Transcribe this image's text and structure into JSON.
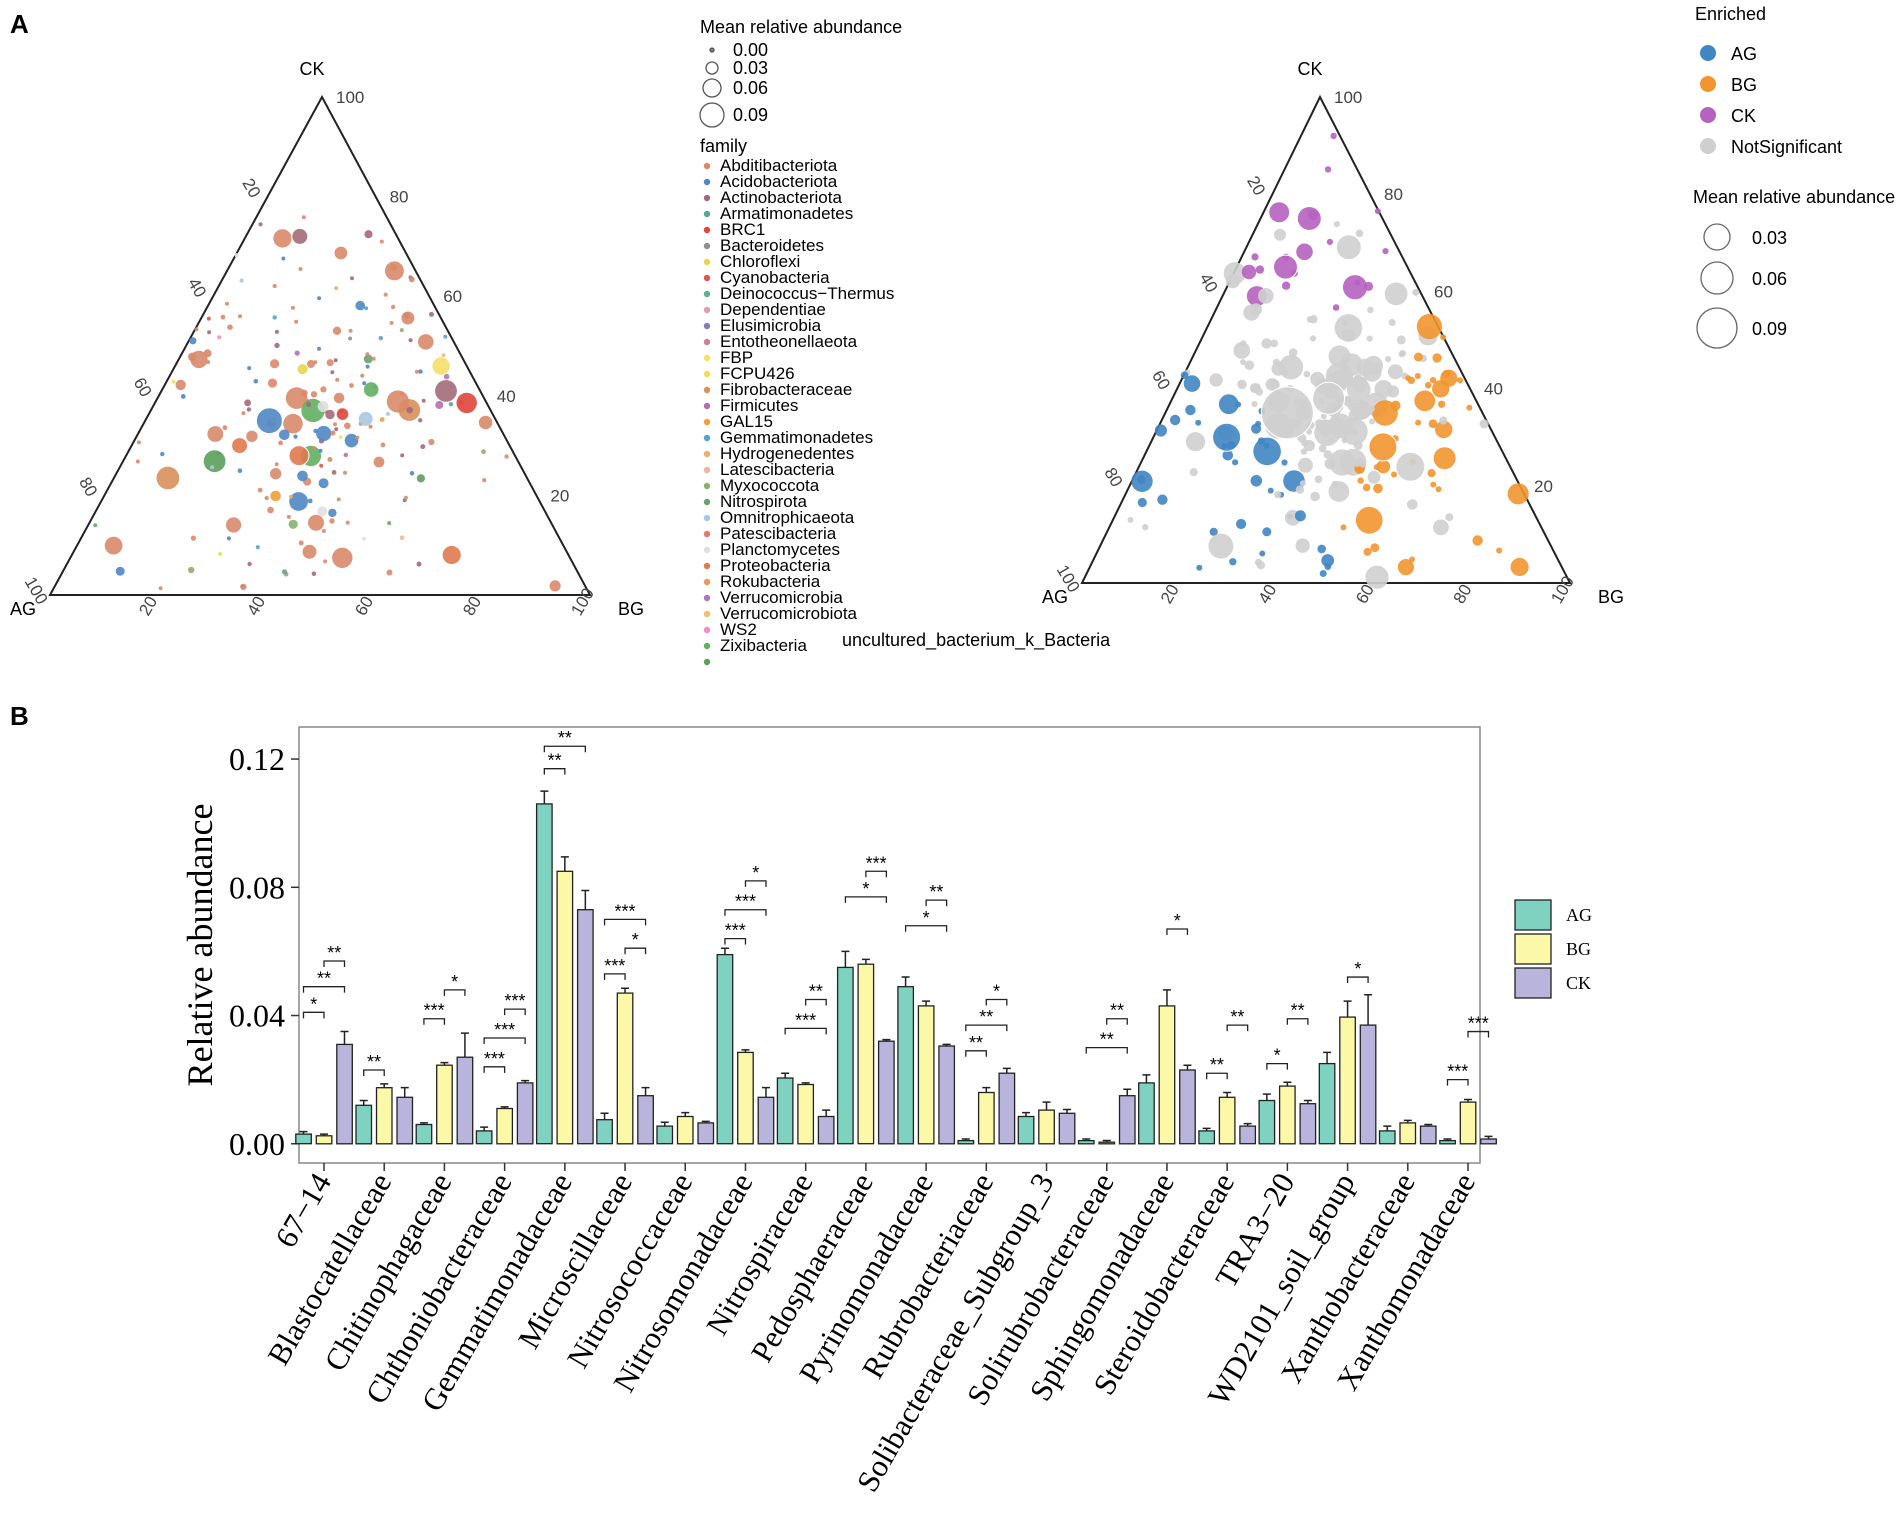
{
  "panel_labels": {
    "a": "A",
    "b": "B"
  },
  "chart_data": [
    {
      "type": "ternary",
      "id": "ternary-family",
      "vertices": {
        "top": "CK",
        "left": "AG",
        "right": "BG"
      },
      "ticks": [
        "20",
        "40",
        "60",
        "80",
        "100"
      ],
      "size_legend": {
        "title": "Mean relative abundance",
        "values": [
          "0.00",
          "0.03",
          "0.06",
          "0.09"
        ]
      },
      "color_legend": {
        "title": "family",
        "entries": [
          {
            "name": "Abditibacteriota",
            "color": "#d9896a"
          },
          {
            "name": "Acidobacteriota",
            "color": "#4f87c4"
          },
          {
            "name": "Actinobacteriota",
            "color": "#a46a7a"
          },
          {
            "name": "Armatimonadetes",
            "color": "#5aa59a"
          },
          {
            "name": "BRC1",
            "color": "#e0463b"
          },
          {
            "name": "Bacteroidetes",
            "color": "#8f8f9a"
          },
          {
            "name": "Chloroflexi",
            "color": "#e8d450"
          },
          {
            "name": "Cyanobacteria",
            "color": "#d85a50"
          },
          {
            "name": "Deinococcus−Thermus",
            "color": "#62b08a"
          },
          {
            "name": "Dependentiae",
            "color": "#d8a0b8"
          },
          {
            "name": "Elusimicrobia",
            "color": "#8a7ab0"
          },
          {
            "name": "Entotheonellaeota",
            "color": "#c8809a"
          },
          {
            "name": "FBP",
            "color": "#f4e06a"
          },
          {
            "name": "FCPU426",
            "color": "#f2dc5a"
          },
          {
            "name": "Fibrobacteraceae",
            "color": "#d8905a"
          },
          {
            "name": "Firmicutes",
            "color": "#b070b0"
          },
          {
            "name": "GAL15",
            "color": "#f0a03a"
          },
          {
            "name": "Gemmatimonadetes",
            "color": "#5aa0d0"
          },
          {
            "name": "Hydrogenedentes",
            "color": "#e8b070"
          },
          {
            "name": "Latescibacteria",
            "color": "#e8b8a0"
          },
          {
            "name": "Myxococcota",
            "color": "#8ab070"
          },
          {
            "name": "Nitrospirota",
            "color": "#6aa070"
          },
          {
            "name": "Omnitrophicaeota",
            "color": "#a8c8e0"
          },
          {
            "name": "Patescibacteria",
            "color": "#e07a6a"
          },
          {
            "name": "Planctomycetes",
            "color": "#e0e0e0"
          },
          {
            "name": "Proteobacteria",
            "color": "#e07a50"
          },
          {
            "name": "Rokubacteria",
            "color": "#e89a60"
          },
          {
            "name": "Verrucomicrobia",
            "color": "#a87ab8"
          },
          {
            "name": "Verrucomicrobiota",
            "color": "#f0c070"
          },
          {
            "name": "WS2",
            "color": "#f090c8"
          },
          {
            "name": "Zixibacteria",
            "color": "#60b060"
          },
          {
            "name": "uncultured_bacterium_k_Bacteria",
            "color": "#5aa05a"
          }
        ]
      }
    },
    {
      "type": "ternary",
      "id": "ternary-enriched",
      "vertices": {
        "top": "CK",
        "left": "AG",
        "right": "BG"
      },
      "ticks": [
        "20",
        "40",
        "60",
        "80",
        "100"
      ],
      "color_legend": {
        "title": "Enriched",
        "entries": [
          {
            "name": "AG",
            "color": "#3f86c2"
          },
          {
            "name": "BG",
            "color": "#f2952f"
          },
          {
            "name": "CK",
            "color": "#b562c0"
          },
          {
            "name": "NotSignificant",
            "color": "#cfcfcf"
          }
        ]
      },
      "size_legend": {
        "title": "Mean relative abundance",
        "values": [
          "0.03",
          "0.06",
          "0.09"
        ]
      }
    },
    {
      "type": "bar",
      "id": "bar-family",
      "ylabel": "Relative abundance",
      "ylim": [
        -0.006,
        0.13
      ],
      "yticks": [
        0.0,
        0.04,
        0.08,
        0.12
      ],
      "ytick_labels": [
        "0.00",
        "0.04",
        "0.08",
        "0.12"
      ],
      "series_names": [
        "AG",
        "BG",
        "CK"
      ],
      "series_colors": [
        "#7fd1c0",
        "#fbf8a8",
        "#b9b4db"
      ],
      "categories": [
        "67−14",
        "Blastocatellaceae",
        "Chitinophagaceae",
        "Chthoniobacteraceae",
        "Gemmatimonadaceae",
        "Microscillaceae",
        "Nitrosococcaceae",
        "Nitrosomonadaceae",
        "Nitrospiraceae",
        "Pedosphaeraceae",
        "Pyrinomonadaceae",
        "Rubrobacteriaceae",
        "Solibacteraceae_Subgroup_3",
        "Solirubrobacteraceae",
        "Sphingomonadaceae",
        "Steroidobacteraceae",
        "TRA3−20",
        "WD2101_soil_group",
        "Xanthobacteraceae",
        "Xanthomonadaceae"
      ],
      "values": [
        [
          0.003,
          0.0025,
          0.031
        ],
        [
          0.012,
          0.0175,
          0.0145
        ],
        [
          0.006,
          0.0245,
          0.027
        ],
        [
          0.004,
          0.011,
          0.019
        ],
        [
          0.106,
          0.085,
          0.073
        ],
        [
          0.0075,
          0.047,
          0.015
        ],
        [
          0.0055,
          0.0085,
          0.0065
        ],
        [
          0.059,
          0.0285,
          0.0145
        ],
        [
          0.0205,
          0.0185,
          0.0085
        ],
        [
          0.055,
          0.056,
          0.032
        ],
        [
          0.049,
          0.043,
          0.0305
        ],
        [
          0.001,
          0.016,
          0.022
        ],
        [
          0.0085,
          0.0105,
          0.0095
        ],
        [
          0.001,
          0.0005,
          0.015
        ],
        [
          0.019,
          0.043,
          0.023
        ],
        [
          0.004,
          0.0145,
          0.0055
        ],
        [
          0.0135,
          0.018,
          0.0125
        ],
        [
          0.025,
          0.0395,
          0.037
        ],
        [
          0.004,
          0.0065,
          0.0055
        ],
        [
          0.001,
          0.013,
          0.0015
        ]
      ],
      "errors": [
        [
          0.0008,
          0.0005,
          0.004
        ],
        [
          0.0015,
          0.0012,
          0.003
        ],
        [
          0.0005,
          0.0008,
          0.0075
        ],
        [
          0.0012,
          0.0005,
          0.0007
        ],
        [
          0.004,
          0.0045,
          0.006
        ],
        [
          0.002,
          0.0015,
          0.0025
        ],
        [
          0.0012,
          0.0012,
          0.0005
        ],
        [
          0.002,
          0.0008,
          0.003
        ],
        [
          0.0015,
          0.0005,
          0.002
        ],
        [
          0.005,
          0.0015,
          0.0005
        ],
        [
          0.003,
          0.0015,
          0.0005
        ],
        [
          0.0005,
          0.0015,
          0.0015
        ],
        [
          0.0012,
          0.0025,
          0.0012
        ],
        [
          0.0005,
          0.0005,
          0.002
        ],
        [
          0.0025,
          0.005,
          0.0015
        ],
        [
          0.0008,
          0.0015,
          0.0008
        ],
        [
          0.002,
          0.0012,
          0.001
        ],
        [
          0.0035,
          0.005,
          0.0095
        ],
        [
          0.0015,
          0.0008,
          0.0005
        ],
        [
          0.0005,
          0.0008,
          0.0008
        ]
      ],
      "significance": [
        {
          "category": 0,
          "pairs": [
            [
              0,
              1,
              0.041,
              "*"
            ],
            [
              0,
              2,
              0.049,
              "**"
            ],
            [
              1,
              2,
              0.057,
              "**"
            ]
          ]
        },
        {
          "category": 1,
          "pairs": [
            [
              0,
              1,
              0.023,
              "**"
            ]
          ]
        },
        {
          "category": 2,
          "pairs": [
            [
              0,
              1,
              0.039,
              "***"
            ],
            [
              1,
              2,
              0.048,
              "*"
            ]
          ]
        },
        {
          "category": 3,
          "pairs": [
            [
              0,
              1,
              0.024,
              "***"
            ],
            [
              0,
              2,
              0.033,
              "***"
            ],
            [
              1,
              2,
              0.042,
              "***"
            ]
          ]
        },
        {
          "category": 4,
          "pairs": [
            [
              0,
              1,
              0.117,
              "**"
            ],
            [
              0,
              2,
              0.124,
              "**"
            ]
          ]
        },
        {
          "category": 5,
          "pairs": [
            [
              0,
              1,
              0.053,
              "***"
            ],
            [
              1,
              2,
              0.061,
              "*"
            ],
            [
              0,
              2,
              0.07,
              "***"
            ]
          ]
        },
        {
          "category": 7,
          "pairs": [
            [
              0,
              1,
              0.064,
              "***"
            ],
            [
              0,
              2,
              0.073,
              "***"
            ],
            [
              1,
              2,
              0.082,
              "*"
            ]
          ]
        },
        {
          "category": 8,
          "pairs": [
            [
              0,
              2,
              0.036,
              "***"
            ],
            [
              1,
              2,
              0.045,
              "**"
            ]
          ]
        },
        {
          "category": 9,
          "pairs": [
            [
              0,
              2,
              0.077,
              "*"
            ],
            [
              1,
              2,
              0.085,
              "***"
            ]
          ]
        },
        {
          "category": 10,
          "pairs": [
            [
              0,
              2,
              0.068,
              "*"
            ],
            [
              1,
              2,
              0.076,
              "**"
            ]
          ]
        },
        {
          "category": 11,
          "pairs": [
            [
              0,
              1,
              0.029,
              "**"
            ],
            [
              0,
              2,
              0.037,
              "**"
            ],
            [
              1,
              2,
              0.045,
              "*"
            ]
          ]
        },
        {
          "category": 13,
          "pairs": [
            [
              0,
              2,
              0.03,
              "**"
            ],
            [
              1,
              2,
              0.039,
              "**"
            ]
          ]
        },
        {
          "category": 14,
          "pairs": [
            [
              1,
              2,
              0.067,
              "*"
            ]
          ]
        },
        {
          "category": 15,
          "pairs": [
            [
              0,
              1,
              0.022,
              "**"
            ],
            [
              1,
              2,
              0.037,
              "**"
            ]
          ]
        },
        {
          "category": 16,
          "pairs": [
            [
              0,
              1,
              0.025,
              "*"
            ],
            [
              1,
              2,
              0.039,
              "**"
            ]
          ]
        },
        {
          "category": 17,
          "pairs": [
            [
              1,
              2,
              0.052,
              "*"
            ]
          ]
        },
        {
          "category": 19,
          "pairs": [
            [
              0,
              1,
              0.02,
              "***"
            ],
            [
              1,
              2,
              0.035,
              "***"
            ]
          ]
        }
      ],
      "legend": [
        {
          "name": "AG",
          "color": "#7fd1c0"
        },
        {
          "name": "BG",
          "color": "#fbf8a8"
        },
        {
          "name": "CK",
          "color": "#b9b4db"
        }
      ]
    }
  ]
}
